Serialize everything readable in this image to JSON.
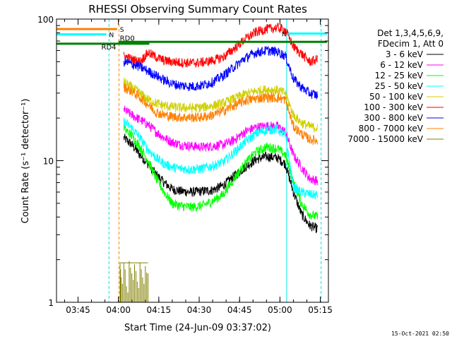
{
  "chart_data": {
    "type": "line",
    "title": "RHESSI Observing Summary Count Rates",
    "xlabel": "Start Time (24-Jun-09 03:37:02)",
    "ylabel": "Count Rate (s⁻¹ detector⁻¹)",
    "yscale": "log",
    "ylim": [
      1,
      100
    ],
    "xlim_minutes": [
      0,
      101
    ],
    "x_ticks": [
      {
        "t": 8,
        "label": "03:45"
      },
      {
        "t": 23,
        "label": "04:00"
      },
      {
        "t": 38,
        "label": "04:15"
      },
      {
        "t": 53,
        "label": "04:30"
      },
      {
        "t": 68,
        "label": "04:45"
      },
      {
        "t": 83,
        "label": "05:00"
      },
      {
        "t": 98,
        "label": "05:15"
      }
    ],
    "y_ticks": [
      {
        "v": 1,
        "label": "1"
      },
      {
        "v": 10,
        "label": "10"
      },
      {
        "v": 100,
        "label": "100"
      }
    ],
    "legend_header": [
      "Det 1,3,4,5,6,9,",
      "FDecim 1, Att 0"
    ],
    "series": [
      {
        "name": "3 - 6 keV",
        "color": "#000000",
        "t": [
          25,
          28,
          31,
          34,
          37,
          40,
          43,
          46,
          50,
          54,
          58,
          62,
          66,
          70,
          74,
          78,
          82,
          85,
          88,
          91,
          94,
          97
        ],
        "v": [
          14.5,
          13,
          11,
          9.5,
          8,
          7,
          6.3,
          6.1,
          6.0,
          6.1,
          6.2,
          6.7,
          7.8,
          9,
          10.2,
          10.7,
          10.5,
          9.5,
          6,
          4.2,
          3.5,
          3.3
        ]
      },
      {
        "name": "6 - 12 keV",
        "color": "#ff00ff",
        "t": [
          25,
          28,
          31,
          34,
          37,
          40,
          43,
          46,
          50,
          54,
          58,
          62,
          66,
          70,
          74,
          78,
          82,
          85,
          88,
          91,
          94,
          97
        ],
        "v": [
          23,
          21,
          19.5,
          18,
          16,
          14.5,
          13.5,
          13,
          12.7,
          12.5,
          12.7,
          13,
          14,
          16,
          17.2,
          17.6,
          17.5,
          16,
          11,
          9,
          7.5,
          7.2
        ]
      },
      {
        "name": "12 - 25 keV",
        "color": "#00ff00",
        "t": [
          25,
          28,
          31,
          34,
          37,
          40,
          43,
          46,
          50,
          54,
          58,
          62,
          66,
          70,
          74,
          78,
          82,
          85,
          88,
          91,
          94,
          97
        ],
        "v": [
          17,
          15,
          12.5,
          10,
          7.5,
          6,
          5,
          4.8,
          4.7,
          4.8,
          5.2,
          5.8,
          7.5,
          9.5,
          11.5,
          12.5,
          12.2,
          11,
          7,
          5,
          4.2,
          4.0
        ]
      },
      {
        "name": "25 - 50 keV",
        "color": "#00ffff",
        "t": [
          25,
          28,
          31,
          34,
          37,
          40,
          43,
          46,
          50,
          54,
          58,
          62,
          66,
          70,
          74,
          78,
          82,
          85,
          88,
          91,
          94,
          97
        ],
        "v": [
          19,
          17,
          14.5,
          12,
          10.5,
          9.5,
          9,
          8.8,
          8.7,
          8.8,
          9.2,
          9.8,
          11.5,
          13.5,
          15.5,
          16.5,
          16.8,
          15,
          6.5,
          6,
          5.8,
          5.7
        ]
      },
      {
        "name": "50 - 100 keV",
        "color": "#d0d000",
        "t": [
          25,
          28,
          31,
          34,
          37,
          40,
          43,
          46,
          50,
          54,
          58,
          62,
          66,
          70,
          74,
          78,
          82,
          85,
          88,
          91,
          94,
          97
        ],
        "v": [
          36,
          33,
          30,
          27,
          25.5,
          24.5,
          24,
          23.7,
          23.6,
          23.8,
          24.5,
          25.5,
          27.5,
          29.5,
          31,
          31.8,
          31.5,
          30,
          21,
          18.5,
          17.5,
          17
        ]
      },
      {
        "name": "100 - 300 keV",
        "color": "#ff0000",
        "t": [
          25,
          28,
          31,
          34,
          37,
          40,
          43,
          46,
          50,
          54,
          58,
          62,
          66,
          70,
          74,
          78,
          82,
          85,
          88,
          91,
          94,
          97
        ],
        "v": [
          55,
          52,
          50,
          58,
          54,
          51,
          50,
          49.5,
          49,
          49.5,
          51,
          54,
          62,
          72,
          81,
          85,
          87,
          84,
          64,
          57,
          50,
          52
        ]
      },
      {
        "name": "300 - 800 keV",
        "color": "#0000ff",
        "t": [
          25,
          28,
          31,
          34,
          37,
          40,
          43,
          46,
          50,
          54,
          58,
          62,
          66,
          70,
          74,
          78,
          82,
          85,
          88,
          91,
          94,
          97
        ],
        "v": [
          50,
          48,
          46,
          43,
          40,
          37,
          35,
          34,
          33.5,
          34,
          36,
          40,
          46,
          53,
          58,
          60,
          59,
          55,
          38,
          33,
          30,
          29
        ]
      },
      {
        "name": "800 - 7000 keV",
        "color": "#ff8000",
        "t": [
          25,
          28,
          31,
          34,
          37,
          40,
          43,
          46,
          50,
          54,
          58,
          62,
          66,
          70,
          74,
          78,
          82,
          85,
          88,
          91,
          94,
          97
        ],
        "v": [
          33,
          31,
          28,
          25,
          22,
          21,
          20.5,
          20.3,
          20.2,
          20.3,
          21,
          22.5,
          24.5,
          26.5,
          27.5,
          28,
          27.8,
          27,
          17.5,
          15.5,
          14.2,
          13.8
        ]
      },
      {
        "name": "7000 - 15000 keV",
        "color": "#808000",
        "t": [
          23.6,
          24,
          25,
          26,
          27,
          28,
          29,
          30,
          31,
          32,
          33,
          34
        ],
        "v": [
          1.9,
          1.5,
          1.9,
          1.3,
          1.95,
          1.6,
          1.85,
          1.4,
          1.9,
          1.5,
          1.8,
          1.6
        ]
      }
    ],
    "vertical_markers": [
      {
        "t": 19.5,
        "color": "#00e5e5",
        "style": "dashed"
      },
      {
        "t": 23.2,
        "color": "#ff8000",
        "style": "dashed"
      },
      {
        "t": 85.5,
        "color": "#00e5e5",
        "style": "solid"
      },
      {
        "t": 98.3,
        "color": "#00e5e5",
        "style": "dashed"
      }
    ],
    "flag_bars": [
      {
        "label": "S",
        "color": "#ff8000",
        "t_start": 0,
        "t_end": 22.5,
        "level": 85
      },
      {
        "label": "N",
        "color": "#00ffff",
        "t_start": 0,
        "t_end": 18.5,
        "level": 78
      },
      {
        "label": "N",
        "color": "#00ffff",
        "t_start": 86,
        "t_end": 100.5,
        "level": 79
      },
      {
        "label": "RD0",
        "color": "#008000",
        "t_start": 23,
        "t_end": 100.5,
        "level": 69
      },
      {
        "label": "RD4",
        "color": "#008000",
        "t_start": 0,
        "t_end": 34.5,
        "level": 67
      }
    ]
  },
  "footer_date": "15-Oct-2021 02:50"
}
